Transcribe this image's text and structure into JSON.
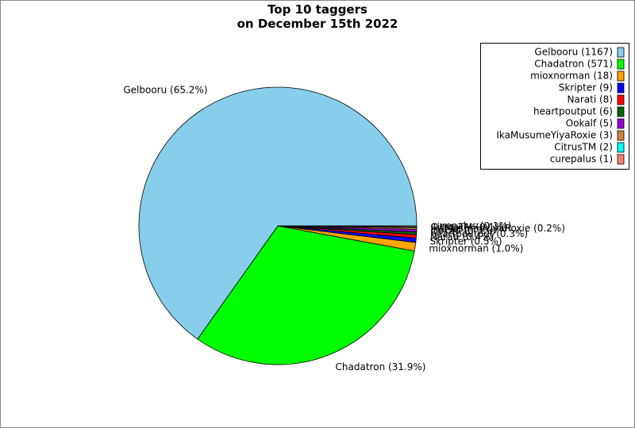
{
  "chart_data": {
    "type": "pie",
    "title": "Top 10 taggers\non December 15th 2022",
    "categories": [
      "Gelbooru (1167)",
      "Chadatron (571)",
      "mioxnorman (18)",
      "Skripter (9)",
      "Narati (8)",
      "heartpoutput (6)",
      "Ookalf (5)",
      "IkaMusumeYiyaRoxie (3)",
      "CitrusTM (2)",
      "curepalus (1)"
    ],
    "values": [
      65.2,
      31.9,
      1.0,
      0.5,
      0.4,
      0.3,
      0.3,
      0.2,
      0.1,
      0.1
    ],
    "value_labels": [
      "Gelbooru (65.2%)",
      "Chadatron (31.9%)",
      "mioxnorman (1.0%)",
      "Skripter (0.5%)",
      "Narati (0.4%)",
      "heartpoutput (0.3%)",
      "Ookalf (0.3%)",
      "IkaMusumeYiyaRoxie (0.2%)",
      "CitrusTM (0.1%)",
      "curepalus (0.1%)"
    ],
    "colors": [
      "#87ceeb",
      "#00ff00",
      "#ffa500",
      "#0000ff",
      "#ff0000",
      "#006400",
      "#9400d3",
      "#cd853f",
      "#00ffff",
      "#fa8072"
    ],
    "legend": "upper right"
  }
}
